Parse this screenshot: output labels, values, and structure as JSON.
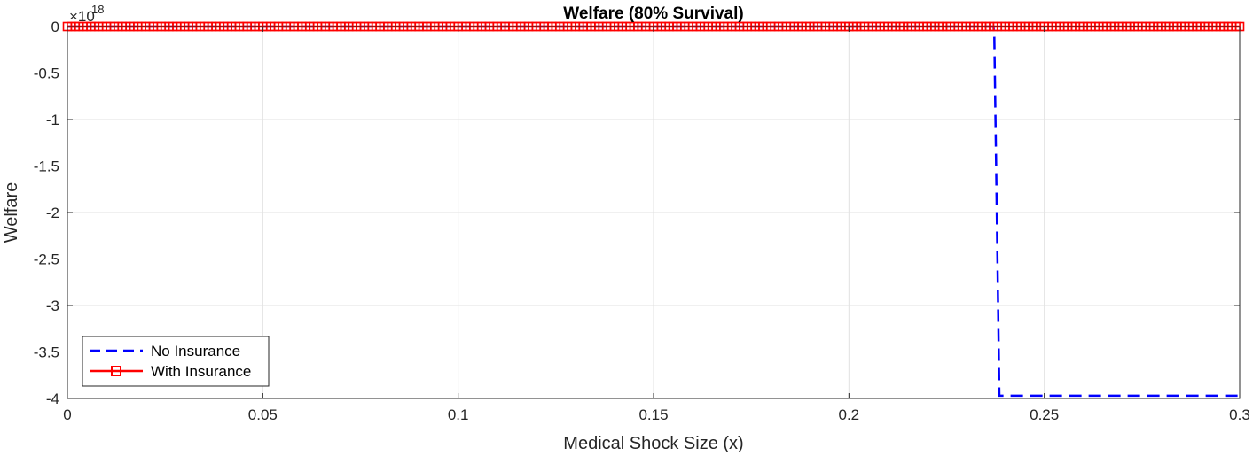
{
  "chart_data": {
    "type": "line",
    "title": "Welfare (80% Survival)",
    "xlabel": "Medical Shock Size (x)",
    "ylabel": "Welfare",
    "exponent_label": "×10",
    "exponent_power": "18",
    "xlim": [
      0,
      0.3
    ],
    "ylim": [
      -4,
      0
    ],
    "xticks": [
      0,
      0.05,
      0.1,
      0.15,
      0.2,
      0.25,
      0.3
    ],
    "xtick_labels": [
      "0",
      "0.05",
      "0.1",
      "0.15",
      "0.2",
      "0.25",
      "0.3"
    ],
    "yticks": [
      0,
      -0.5,
      -1,
      -1.5,
      -2,
      -2.5,
      -3,
      -3.5,
      -4
    ],
    "ytick_labels": [
      "0",
      "-0.5",
      "-1",
      "-1.5",
      "-2",
      "-2.5",
      "-3",
      "-3.5",
      "-4"
    ],
    "grid": true,
    "legend_position": "bottom-left",
    "series": [
      {
        "name": "No Insurance",
        "color": "#0000ff",
        "style": "dashed",
        "points": [
          [
            0,
            0
          ],
          [
            0.237,
            0
          ],
          [
            0.2372,
            -0.1
          ],
          [
            0.2385,
            -3.97
          ],
          [
            0.3,
            -3.97
          ]
        ]
      },
      {
        "name": "With Insurance",
        "color": "#ff0000",
        "style": "solid-square-markers",
        "x_start": 0,
        "x_end": 0.3,
        "marker_count": 301,
        "y_constant": 0
      }
    ]
  }
}
